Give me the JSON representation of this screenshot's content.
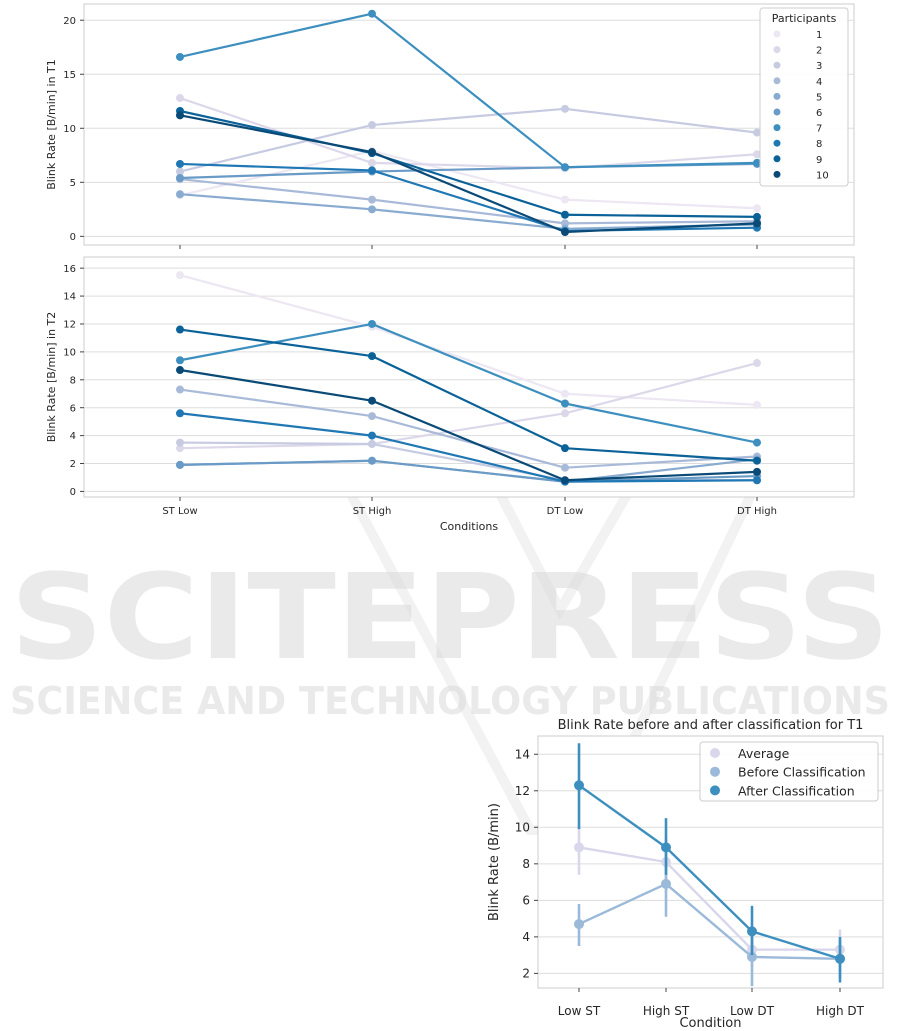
{
  "watermark": {
    "main": "SCITEPRESS",
    "sub": "SCIENCE AND TECHNOLOGY PUBLICATIONS"
  },
  "chart_data": [
    {
      "type": "line",
      "ylabel": "Blink Rate [B/min] in T1",
      "xlabel": "",
      "categories": [
        "ST Low",
        "ST High",
        "DT Low",
        "DT High"
      ],
      "ylim": [
        -0.8,
        21.5
      ],
      "yticks": [
        0,
        5,
        10,
        15,
        20
      ],
      "grid": true,
      "legend": {
        "title": "Participants",
        "placement": "top-right"
      },
      "series": [
        {
          "name": "1",
          "color": "#ece7f2",
          "values": [
            3.8,
            7.9,
            3.4,
            2.6
          ]
        },
        {
          "name": "2",
          "color": "#dcd8ea",
          "values": [
            12.8,
            6.8,
            6.3,
            7.6
          ]
        },
        {
          "name": "3",
          "color": "#c7cbe1",
          "values": [
            6.0,
            10.3,
            11.8,
            9.6
          ]
        },
        {
          "name": "4",
          "color": "#a9bad9",
          "values": [
            5.3,
            3.4,
            1.2,
            1.4
          ]
        },
        {
          "name": "5",
          "color": "#8aabd0",
          "values": [
            3.9,
            2.5,
            0.7,
            1.1
          ]
        },
        {
          "name": "6",
          "color": "#6a9bc7",
          "values": [
            5.4,
            6.0,
            6.4,
            6.7
          ]
        },
        {
          "name": "7",
          "color": "#3d8fbf",
          "values": [
            16.6,
            20.6,
            6.4,
            6.8
          ]
        },
        {
          "name": "8",
          "color": "#1f77b4",
          "values": [
            6.7,
            6.1,
            0.5,
            0.8
          ]
        },
        {
          "name": "9",
          "color": "#0a6299",
          "values": [
            11.6,
            7.7,
            2.0,
            1.8
          ]
        },
        {
          "name": "10",
          "color": "#0a4a77",
          "values": [
            11.2,
            7.8,
            0.4,
            1.2
          ]
        }
      ]
    },
    {
      "type": "line",
      "ylabel": "Blink Rate [B/min] in T2",
      "xlabel": "Conditions",
      "categories": [
        "ST Low",
        "ST High",
        "DT Low",
        "DT High"
      ],
      "ylim": [
        -0.4,
        16.8
      ],
      "yticks": [
        0,
        2,
        4,
        6,
        8,
        10,
        12,
        14,
        16
      ],
      "grid": true,
      "series": [
        {
          "name": "1",
          "color": "#ece7f2",
          "values": [
            15.5,
            11.8,
            7.0,
            6.2
          ]
        },
        {
          "name": "2",
          "color": "#dcd8ea",
          "values": [
            3.1,
            3.4,
            5.6,
            9.2
          ]
        },
        {
          "name": "3",
          "color": "#c7cbe1",
          "values": [
            3.5,
            3.4,
            0.8,
            0.8
          ]
        },
        {
          "name": "4",
          "color": "#a9bad9",
          "values": [
            7.3,
            5.4,
            1.7,
            2.5
          ]
        },
        {
          "name": "5",
          "color": "#8aabd0",
          "values": [
            1.9,
            2.2,
            0.7,
            2.3
          ]
        },
        {
          "name": "6",
          "color": "#6a9bc7",
          "values": [
            1.9,
            2.2,
            0.7,
            1.1
          ]
        },
        {
          "name": "7",
          "color": "#3d8fbf",
          "values": [
            9.4,
            12.0,
            6.3,
            3.5
          ]
        },
        {
          "name": "8",
          "color": "#1f77b4",
          "values": [
            5.6,
            4.0,
            0.7,
            0.8
          ]
        },
        {
          "name": "9",
          "color": "#0a6299",
          "values": [
            11.6,
            9.7,
            3.1,
            2.2
          ]
        },
        {
          "name": "10",
          "color": "#0a4a77",
          "values": [
            8.7,
            6.5,
            0.8,
            1.4
          ]
        }
      ]
    },
    {
      "type": "line",
      "title": "Blink Rate before and after classification for T1",
      "ylabel": "Blink Rate (B/min)",
      "xlabel": "Condition",
      "categories": [
        "Low ST",
        "High ST",
        "Low DT",
        "High DT"
      ],
      "ylim": [
        1.2,
        15.0
      ],
      "yticks": [
        2,
        4,
        6,
        8,
        10,
        12,
        14
      ],
      "grid": true,
      "legend": {
        "placement": "top-right"
      },
      "series": [
        {
          "name": "Average",
          "color": "#d9d7eb",
          "values": [
            8.9,
            8.1,
            3.3,
            3.3
          ],
          "err_low": [
            7.4,
            6.4,
            2.4,
            2.3
          ],
          "err_high": [
            10.2,
            9.5,
            4.2,
            4.4
          ]
        },
        {
          "name": "Before Classification",
          "color": "#9bb9d9",
          "values": [
            4.7,
            6.9,
            2.9,
            2.8
          ],
          "err_low": [
            3.5,
            5.1,
            1.3,
            1.8
          ],
          "err_high": [
            5.8,
            8.6,
            4.3,
            3.8
          ]
        },
        {
          "name": "After Classification",
          "color": "#3d8fbf",
          "values": [
            12.3,
            8.9,
            4.3,
            2.8
          ],
          "err_low": [
            9.9,
            7.4,
            3.0,
            1.5
          ],
          "err_high": [
            14.6,
            10.5,
            5.7,
            4.0
          ]
        }
      ]
    }
  ]
}
